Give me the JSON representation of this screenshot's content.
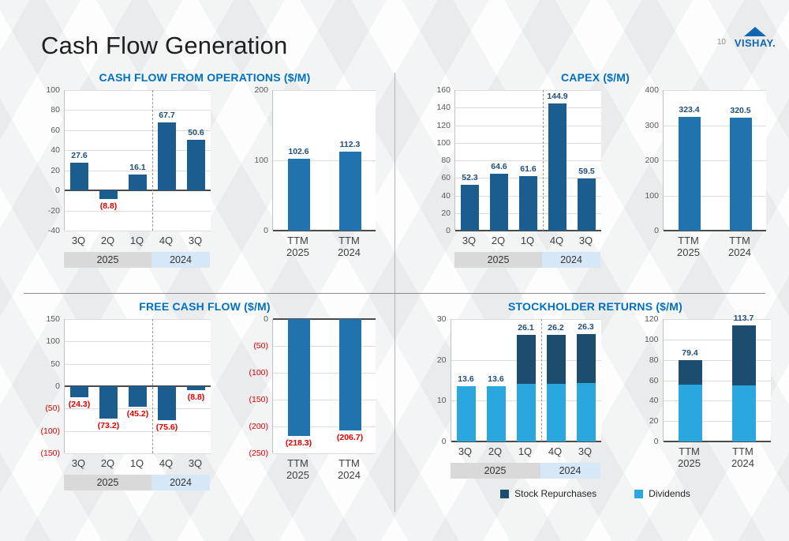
{
  "slide": {
    "title": "Cash Flow Generation",
    "page_number": "10",
    "logo_text": "VISHAY."
  },
  "colors": {
    "bar_dark": "#1c5d90",
    "bar_ttm": "#2173ae",
    "repurchases": "#1d4d6e",
    "dividends": "#2aa7df",
    "title_blue": "#0070c0",
    "negative_red": "#e00000",
    "label_blue": "#1f4e79",
    "band_2025": "#d9d9d9",
    "band_2024": "#d6e8f7"
  },
  "panels": [
    {
      "title": "CASH FLOW FROM OPERATIONS ($/M)"
    },
    {
      "title": "CAPEX ($/M)"
    },
    {
      "title": "FREE CASH FLOW ($/M)"
    },
    {
      "title": "STOCKHOLDER RETURNS ($/M)"
    }
  ],
  "legend": {
    "items": [
      {
        "label": "Stock Repurchases",
        "color_key": "repurchases"
      },
      {
        "label": "Dividends",
        "color_key": "dividends"
      }
    ]
  },
  "chart_data": [
    {
      "name": "cash-flow-from-operations-quarterly",
      "type": "bar",
      "categories": [
        "3Q",
        "2Q",
        "1Q",
        "4Q",
        "3Q"
      ],
      "values": [
        27.6,
        -8.8,
        16.1,
        67.7,
        50.6
      ],
      "value_labels": [
        "27.6",
        "(8.8)",
        "16.1",
        "67.7",
        "50.6"
      ],
      "ylim": [
        -40,
        100
      ],
      "yticks": [
        100,
        80,
        60,
        40,
        20,
        0,
        -20,
        -40
      ],
      "ytick_labels": [
        "100",
        "80",
        "60",
        "40",
        "20",
        "0",
        "-20",
        "-40"
      ],
      "bar_color": "bar_dark",
      "separator_after": 2,
      "year_bands": [
        {
          "label": "2025",
          "span": 3,
          "color": "band_2025"
        },
        {
          "label": "2024",
          "span": 2,
          "color": "band_2024"
        }
      ]
    },
    {
      "name": "cash-flow-from-operations-ttm",
      "type": "bar",
      "categories": [
        "TTM\n2025",
        "TTM\n2024"
      ],
      "values": [
        102.6,
        112.3
      ],
      "value_labels": [
        "102.6",
        "112.3"
      ],
      "ylim": [
        0,
        200
      ],
      "yticks": [
        200,
        100,
        0
      ],
      "ytick_labels": [
        "200",
        "100",
        "0"
      ],
      "bar_color": "bar_ttm"
    },
    {
      "name": "capex-quarterly",
      "type": "bar",
      "categories": [
        "3Q",
        "2Q",
        "1Q",
        "4Q",
        "3Q"
      ],
      "values": [
        52.3,
        64.6,
        61.6,
        144.9,
        59.5
      ],
      "value_labels": [
        "52.3",
        "64.6",
        "61.6",
        "144.9",
        "59.5"
      ],
      "ylim": [
        0,
        160
      ],
      "yticks": [
        160,
        140,
        120,
        100,
        80,
        60,
        40,
        20,
        0
      ],
      "ytick_labels": [
        "160",
        "140",
        "120",
        "100",
        "80",
        "60",
        "40",
        "20",
        "0"
      ],
      "bar_color": "bar_dark",
      "separator_after": 2,
      "year_bands": [
        {
          "label": "2025",
          "span": 3,
          "color": "band_2025"
        },
        {
          "label": "2024",
          "span": 2,
          "color": "band_2024"
        }
      ]
    },
    {
      "name": "capex-ttm",
      "type": "bar",
      "categories": [
        "TTM\n2025",
        "TTM\n2024"
      ],
      "values": [
        323.4,
        320.5
      ],
      "value_labels": [
        "323.4",
        "320.5"
      ],
      "ylim": [
        0,
        400
      ],
      "yticks": [
        400,
        300,
        200,
        100,
        0
      ],
      "ytick_labels": [
        "400",
        "300",
        "200",
        "100",
        "0"
      ],
      "bar_color": "bar_ttm"
    },
    {
      "name": "free-cash-flow-quarterly",
      "type": "bar",
      "categories": [
        "3Q",
        "2Q",
        "1Q",
        "4Q",
        "3Q"
      ],
      "values": [
        -24.3,
        -73.2,
        -45.2,
        -75.6,
        -8.8
      ],
      "value_labels": [
        "(24.3)",
        "(73.2)",
        "(45.2)",
        "(75.6)",
        "(8.8)"
      ],
      "ylim": [
        -150,
        150
      ],
      "yticks": [
        150,
        100,
        50,
        0,
        -50,
        -100,
        -150
      ],
      "ytick_labels": [
        "150",
        "100",
        "50",
        "0",
        "(50)",
        "(100)",
        "(150)"
      ],
      "bar_color": "bar_dark",
      "separator_after": 2,
      "year_bands": [
        {
          "label": "2025",
          "span": 3,
          "color": "band_2025"
        },
        {
          "label": "2024",
          "span": 2,
          "color": "band_2024"
        }
      ]
    },
    {
      "name": "free-cash-flow-ttm",
      "type": "bar",
      "categories": [
        "TTM\n2025",
        "TTM\n2024"
      ],
      "values": [
        -218.3,
        -206.7
      ],
      "value_labels": [
        "(218.3)",
        "(206.7)"
      ],
      "ylim": [
        -250,
        0
      ],
      "yticks": [
        0,
        -50,
        -100,
        -150,
        -200,
        -250
      ],
      "ytick_labels": [
        "0",
        "(50)",
        "(100)",
        "(150)",
        "(200)",
        "(250)"
      ],
      "bar_color": "bar_ttm"
    },
    {
      "name": "stockholder-returns-quarterly",
      "type": "bar",
      "stacked": true,
      "categories": [
        "3Q",
        "2Q",
        "1Q",
        "4Q",
        "3Q"
      ],
      "series": [
        {
          "name": "Dividends",
          "color": "dividends",
          "values": [
            13.6,
            13.6,
            14.1,
            14.2,
            14.3
          ]
        },
        {
          "name": "Stock Repurchases",
          "color": "repurchases",
          "values": [
            0,
            0,
            12.0,
            12.0,
            12.0
          ]
        }
      ],
      "totals": [
        13.6,
        13.6,
        26.1,
        26.2,
        26.3
      ],
      "value_labels": [
        "13.6",
        "13.6",
        "26.1",
        "26.2",
        "26.3"
      ],
      "ylim": [
        0,
        30
      ],
      "yticks": [
        30,
        20,
        10,
        0
      ],
      "ytick_labels": [
        "30",
        "20",
        "10",
        "0"
      ],
      "separator_after": 2,
      "year_bands": [
        {
          "label": "2025",
          "span": 3,
          "color": "band_2025"
        },
        {
          "label": "2024",
          "span": 2,
          "color": "band_2024"
        }
      ]
    },
    {
      "name": "stockholder-returns-ttm",
      "type": "bar",
      "stacked": true,
      "categories": [
        "TTM\n2025",
        "TTM\n2024"
      ],
      "series": [
        {
          "name": "Dividends",
          "color": "dividends",
          "values": [
            55.4,
            54.7
          ]
        },
        {
          "name": "Stock Repurchases",
          "color": "repurchases",
          "values": [
            24.0,
            59.0
          ]
        }
      ],
      "totals": [
        79.4,
        113.7
      ],
      "value_labels": [
        "79.4",
        "113.7"
      ],
      "ylim": [
        0,
        120
      ],
      "yticks": [
        120,
        100,
        80,
        60,
        40,
        20,
        0
      ],
      "ytick_labels": [
        "120",
        "100",
        "80",
        "60",
        "40",
        "20",
        "0"
      ]
    }
  ]
}
